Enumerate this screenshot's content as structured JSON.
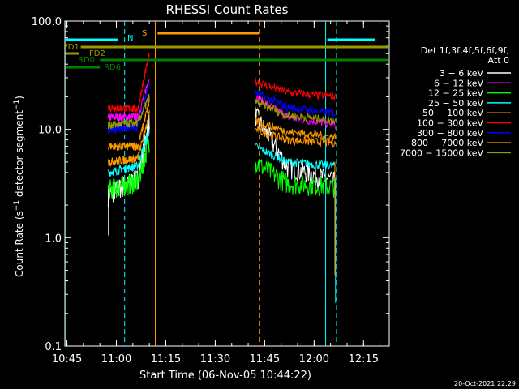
{
  "chart_data": {
    "type": "line",
    "title": "RHESSI Count Rates",
    "xlabel": "Start Time (06-Nov-05 10:44:22)",
    "ylabel_main": "Count Rate (s",
    "ylabel_sup": "−1",
    "ylabel_mid": " detector segment",
    "ylabel_sup2": "−1",
    "ylabel_end": ")",
    "y_scale": "log",
    "ylim": [
      0.1,
      100
    ],
    "xlim_minutes": [
      10.7333,
      23.3,
      82.0
    ],
    "x_ticks": [
      {
        "minute": 45,
        "label": "10:45"
      },
      {
        "minute": 60,
        "label": "11:00"
      },
      {
        "minute": 75,
        "label": "11:15"
      },
      {
        "minute": 90,
        "label": "11:30"
      },
      {
        "minute": 105,
        "label": "11:45"
      },
      {
        "minute": 120,
        "label": "12:00"
      },
      {
        "minute": 135,
        "label": "12:15"
      }
    ],
    "y_ticks": [
      {
        "value": 0.1,
        "label": "0.1"
      },
      {
        "value": 1,
        "label": "1.0"
      },
      {
        "value": 10,
        "label": "10.0"
      },
      {
        "value": 100,
        "label": "100.0"
      }
    ],
    "legend_header": [
      "Det 1f,3f,4f,5f,6f,9f,",
      "Att 0"
    ],
    "series": [
      {
        "name": "3 − 6 keV",
        "color": "#ffffff",
        "seg1": [
          2.5,
          3.5,
          12
        ],
        "seg2": [
          14,
          4.5,
          3.3
        ]
      },
      {
        "name": "6 − 12 keV",
        "color": "#ff00ff",
        "seg1": [
          13,
          13,
          30
        ],
        "seg2": [
          20,
          13,
          11
        ]
      },
      {
        "name": "12 − 25 keV",
        "color": "#00ff00",
        "seg1": [
          2.8,
          3.3,
          8
        ],
        "seg2": [
          5.0,
          3.2,
          3.0
        ]
      },
      {
        "name": "25 − 50 keV",
        "color": "#00ffff",
        "seg1": [
          4.0,
          4.6,
          10
        ],
        "seg2": [
          7.0,
          5.0,
          4.6
        ]
      },
      {
        "name": "50 − 100 keV",
        "color": "#ff9900",
        "seg1": [
          7.0,
          7.0,
          18
        ],
        "seg2": [
          10.0,
          8.0,
          7.5
        ]
      },
      {
        "name": "100 − 300 keV",
        "color": "#ff0000",
        "seg1": [
          16.0,
          15.5,
          50
        ],
        "seg2": [
          28.0,
          22.0,
          20.0
        ]
      },
      {
        "name": "300 − 800 keV",
        "color": "#0000ff",
        "seg1": [
          10.0,
          10.5,
          27
        ],
        "seg2": [
          22.0,
          16.0,
          14.0
        ]
      },
      {
        "name": "800 − 7000 keV",
        "color": "#ff9900",
        "seg1": [
          5.0,
          5.4,
          14
        ],
        "seg2": [
          12.0,
          9.5,
          8.5
        ]
      },
      {
        "name": "7000 − 15000 keV",
        "color": "#999900",
        "seg1": [
          11.0,
          11.5,
          20
        ],
        "seg2": [
          18.0,
          13.5,
          12.0
        ]
      }
    ],
    "segment1_minutes": [
      57.5,
      66.5,
      70.0
    ],
    "segment2_minutes": [
      102.0,
      112.0,
      126.5
    ],
    "vlines": [
      {
        "minute": 44.7,
        "color": "#00ffff",
        "style": "solid"
      },
      {
        "minute": 62.5,
        "color": "#00ffff",
        "style": "dashed"
      },
      {
        "minute": 71.8,
        "color": "#ff9900",
        "style": "solid"
      },
      {
        "minute": 103.5,
        "color": "#ff9900",
        "style": "dashed"
      },
      {
        "minute": 123.5,
        "color": "#00ffff",
        "style": "solid"
      },
      {
        "minute": 126.8,
        "color": "#00ffff",
        "style": "dashed"
      },
      {
        "minute": 138.5,
        "color": "#00ffff",
        "style": "dashed"
      }
    ],
    "flags": [
      {
        "label": "N",
        "color": "#00ffff",
        "y": 66,
        "x1_minute": 44.7,
        "x2_minute": 62.5,
        "x3_minute": 126.8,
        "x4_minute": 138.5
      },
      {
        "label": "S",
        "color": "#ff9900",
        "y": 80,
        "x1_minute": 71.8,
        "x2_minute": 103.5
      },
      {
        "label": "FD1",
        "color": "#999900",
        "y": 57,
        "x1_minute": 49,
        "x2_minute": 146
      },
      {
        "label": "FD2",
        "color": "#999900",
        "y": 48,
        "x1_minute": 44.5,
        "x2_minute": 49
      },
      {
        "label": "RD0",
        "color": "#008000",
        "y": 43,
        "x1_minute": 55,
        "x2_minute": 146
      },
      {
        "label": "RD6",
        "color": "#008000",
        "y": 36,
        "x1_minute": 44.5,
        "x2_minute": 56.5
      }
    ],
    "footer_date": "20-Oct-2021 22:29",
    "grid": false,
    "legend_placement": "right"
  }
}
